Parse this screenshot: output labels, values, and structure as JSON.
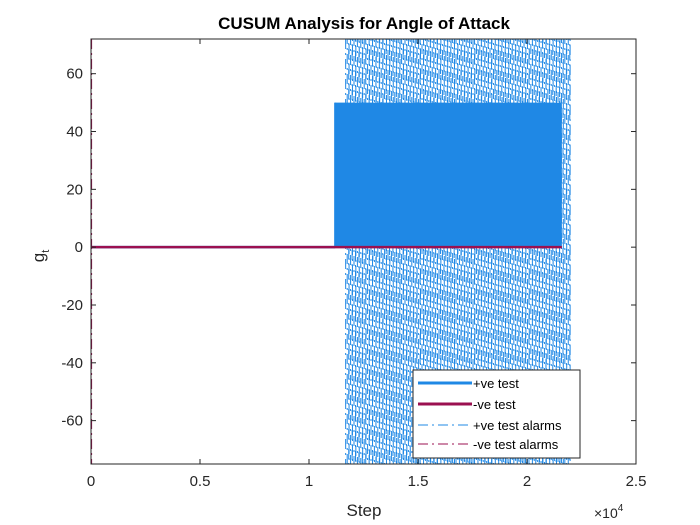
{
  "chart_data": {
    "type": "line",
    "title": "CUSUM Analysis for Angle of Attack",
    "xlabel": "Step",
    "ylabel": "g",
    "ylabel_subscript": "t",
    "x_exponent_base": "×10",
    "x_exponent_power": "4",
    "xlim": [
      0,
      2.5
    ],
    "ylim": [
      -75,
      72
    ],
    "xticks": [
      0,
      0.5,
      1,
      1.5,
      2,
      2.5
    ],
    "xtick_labels": [
      "0",
      "0.5",
      "1",
      "1.5",
      "2",
      "2.5"
    ],
    "yticks": [
      -60,
      -40,
      -20,
      0,
      20,
      40,
      60
    ],
    "ytick_labels": [
      "-60",
      "-40",
      "-20",
      "0",
      "20",
      "40",
      "60"
    ],
    "grid": false,
    "legend_position": "bottom-right",
    "series": [
      {
        "name": "+ve test",
        "color": "#1f88e5",
        "style": "solid",
        "segments": [
          {
            "x": [
              0,
              1.12
            ],
            "y": [
              0,
              0
            ]
          },
          {
            "x_range": [
              1.12,
              2.16
            ],
            "y_band": [
              0,
              50
            ],
            "note": "dense oscillation"
          }
        ]
      },
      {
        "name": "-ve test",
        "color": "#9b1050",
        "style": "solid",
        "segments": [
          {
            "x": [
              0,
              2.16
            ],
            "y": [
              0,
              0
            ]
          }
        ]
      },
      {
        "name": "+ve test alarms",
        "color": "#1f88e5",
        "style": "dash-dot",
        "alarm_range": [
          1.17,
          2.2
        ]
      },
      {
        "name": "-ve test alarms",
        "color": "#9b1050",
        "style": "dash-dot",
        "alarm_x": [
          0.0
        ]
      }
    ]
  }
}
